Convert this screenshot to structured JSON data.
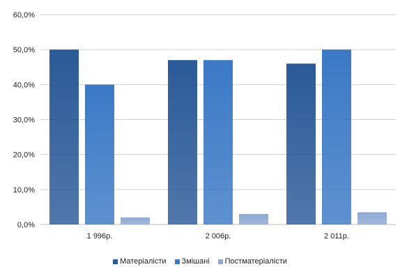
{
  "chart_data": {
    "type": "bar",
    "categories": [
      "1 996р.",
      "2 006р.",
      "2 011р."
    ],
    "series": [
      {
        "name": "Матеріалісти",
        "color": "#2a5a98",
        "values": [
          0.5,
          0.47,
          0.46
        ]
      },
      {
        "name": "Змішані",
        "color": "#3b79c6",
        "values": [
          0.4,
          0.47,
          0.5
        ]
      },
      {
        "name": "Постматеріалісти",
        "color": "#8ea9d3",
        "values": [
          0.02,
          0.03,
          0.035
        ]
      }
    ],
    "y_ticks": [
      "0,0%",
      "10,0%",
      "20,0%",
      "30,0%",
      "40,0%",
      "50,0%",
      "60,0%"
    ],
    "ylim": [
      0,
      0.6
    ],
    "grid": true,
    "legend_position": "bottom"
  }
}
